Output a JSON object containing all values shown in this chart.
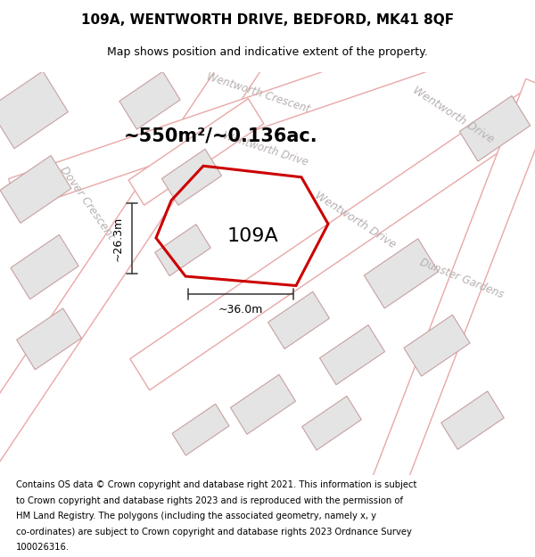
{
  "title_line1": "109A, WENTWORTH DRIVE, BEDFORD, MK41 8QF",
  "title_line2": "Map shows position and indicative extent of the property.",
  "area_label": "~550m²/~0.136ac.",
  "plot_label": "109A",
  "dim_width": "~36.0m",
  "dim_height": "~26.3m",
  "footer_lines": [
    "Contains OS data © Crown copyright and database right 2021. This information is subject",
    "to Crown copyright and database rights 2023 and is reproduced with the permission of",
    "HM Land Registry. The polygons (including the associated geometry, namely x, y",
    "co-ordinates) are subject to Crown copyright and database rights 2023 Ordnance Survey",
    "100026316."
  ],
  "bg_color": "#ffffff",
  "map_bg": "#f2f2f2",
  "road_fill": "#ffffff",
  "road_edge": "#e8a8a8",
  "building_fill": "#e4e4e4",
  "building_edge": "#c8a0a0",
  "highlight_color": "#cc0000",
  "street_label_color": "#b8b0b0",
  "dim_color": "#444444",
  "title_fontsize": 11,
  "subtitle_fontsize": 9,
  "area_fontsize": 15,
  "plot_label_fontsize": 16,
  "dim_fontsize": 9,
  "street_fontsize": 9,
  "footer_fontsize": 7.2
}
